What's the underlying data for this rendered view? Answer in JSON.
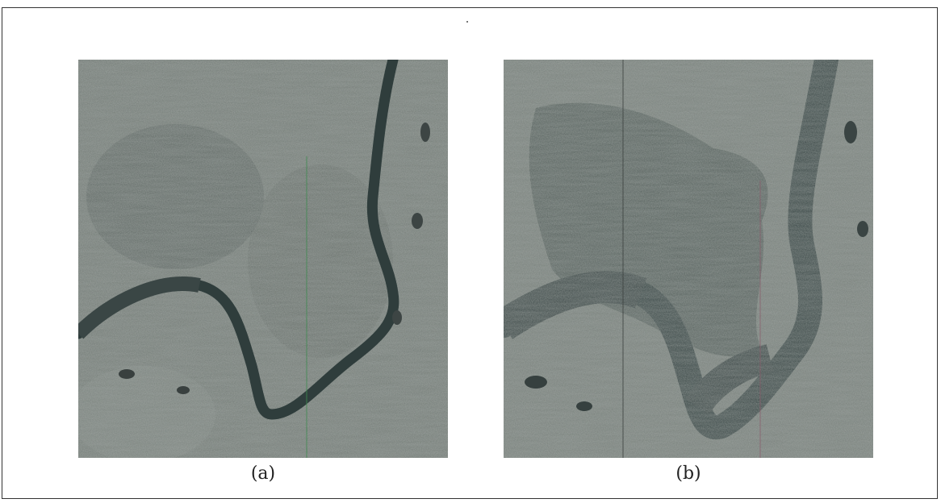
{
  "figure": {
    "panels": [
      {
        "caption": "(a)",
        "description": "river-flood-before"
      },
      {
        "caption": "(b)",
        "description": "river-flood-after"
      }
    ],
    "colors": {
      "background": "#ffffff",
      "terrain": "#6e7670",
      "water": "#2f3d3c",
      "flood": "#4b5752"
    }
  }
}
